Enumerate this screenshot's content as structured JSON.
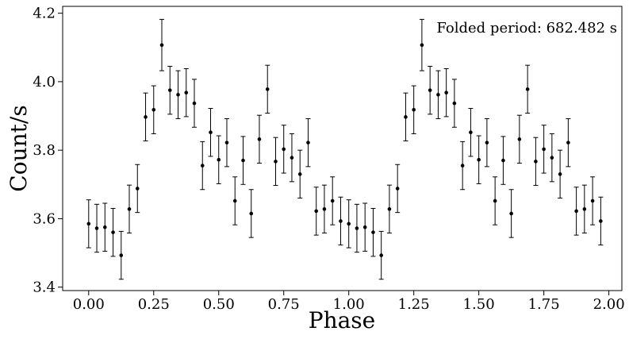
{
  "chart_data": {
    "type": "scatter",
    "title": "",
    "xlabel": "Phase",
    "ylabel": "Count/s",
    "xlim": [
      -0.1,
      2.05
    ],
    "ylim": [
      3.39,
      4.22
    ],
    "x_ticks": [
      "0.00",
      "0.25",
      "0.50",
      "0.75",
      "1.00",
      "1.25",
      "1.50",
      "1.75",
      "2.00"
    ],
    "y_ticks": [
      "3.4",
      "3.6",
      "3.8",
      "4.0",
      "4.2"
    ],
    "annotation": "Folded period: 682.482 s",
    "grid": false,
    "legend": "none",
    "marker_color": "#000000",
    "error_bar_style": "capped vertical error bars",
    "x": [
      0.0,
      0.0312,
      0.0625,
      0.0938,
      0.125,
      0.1562,
      0.1875,
      0.2188,
      0.25,
      0.2812,
      0.3125,
      0.3438,
      0.375,
      0.4062,
      0.4375,
      0.4688,
      0.5,
      0.5312,
      0.5625,
      0.5938,
      0.625,
      0.6562,
      0.6875,
      0.7188,
      0.75,
      0.7812,
      0.8125,
      0.8438,
      0.875,
      0.9062,
      0.9375,
      0.9688
    ],
    "y": [
      3.585,
      3.572,
      3.575,
      3.56,
      3.493,
      3.628,
      3.688,
      3.897,
      3.918,
      4.107,
      3.975,
      3.962,
      3.968,
      3.937,
      3.755,
      3.852,
      3.772,
      3.822,
      3.652,
      3.77,
      3.615,
      3.832,
      3.978,
      3.767,
      3.803,
      3.778,
      3.73,
      3.822,
      3.622,
      3.628,
      3.652,
      3.593
    ],
    "yerr": [
      0.07,
      0.07,
      0.07,
      0.07,
      0.07,
      0.07,
      0.07,
      0.07,
      0.07,
      0.075,
      0.07,
      0.07,
      0.07,
      0.07,
      0.07,
      0.07,
      0.07,
      0.07,
      0.07,
      0.07,
      0.07,
      0.07,
      0.07,
      0.07,
      0.07,
      0.07,
      0.07,
      0.07,
      0.07,
      0.07,
      0.07,
      0.07
    ],
    "repeats_every": 1.0
  }
}
